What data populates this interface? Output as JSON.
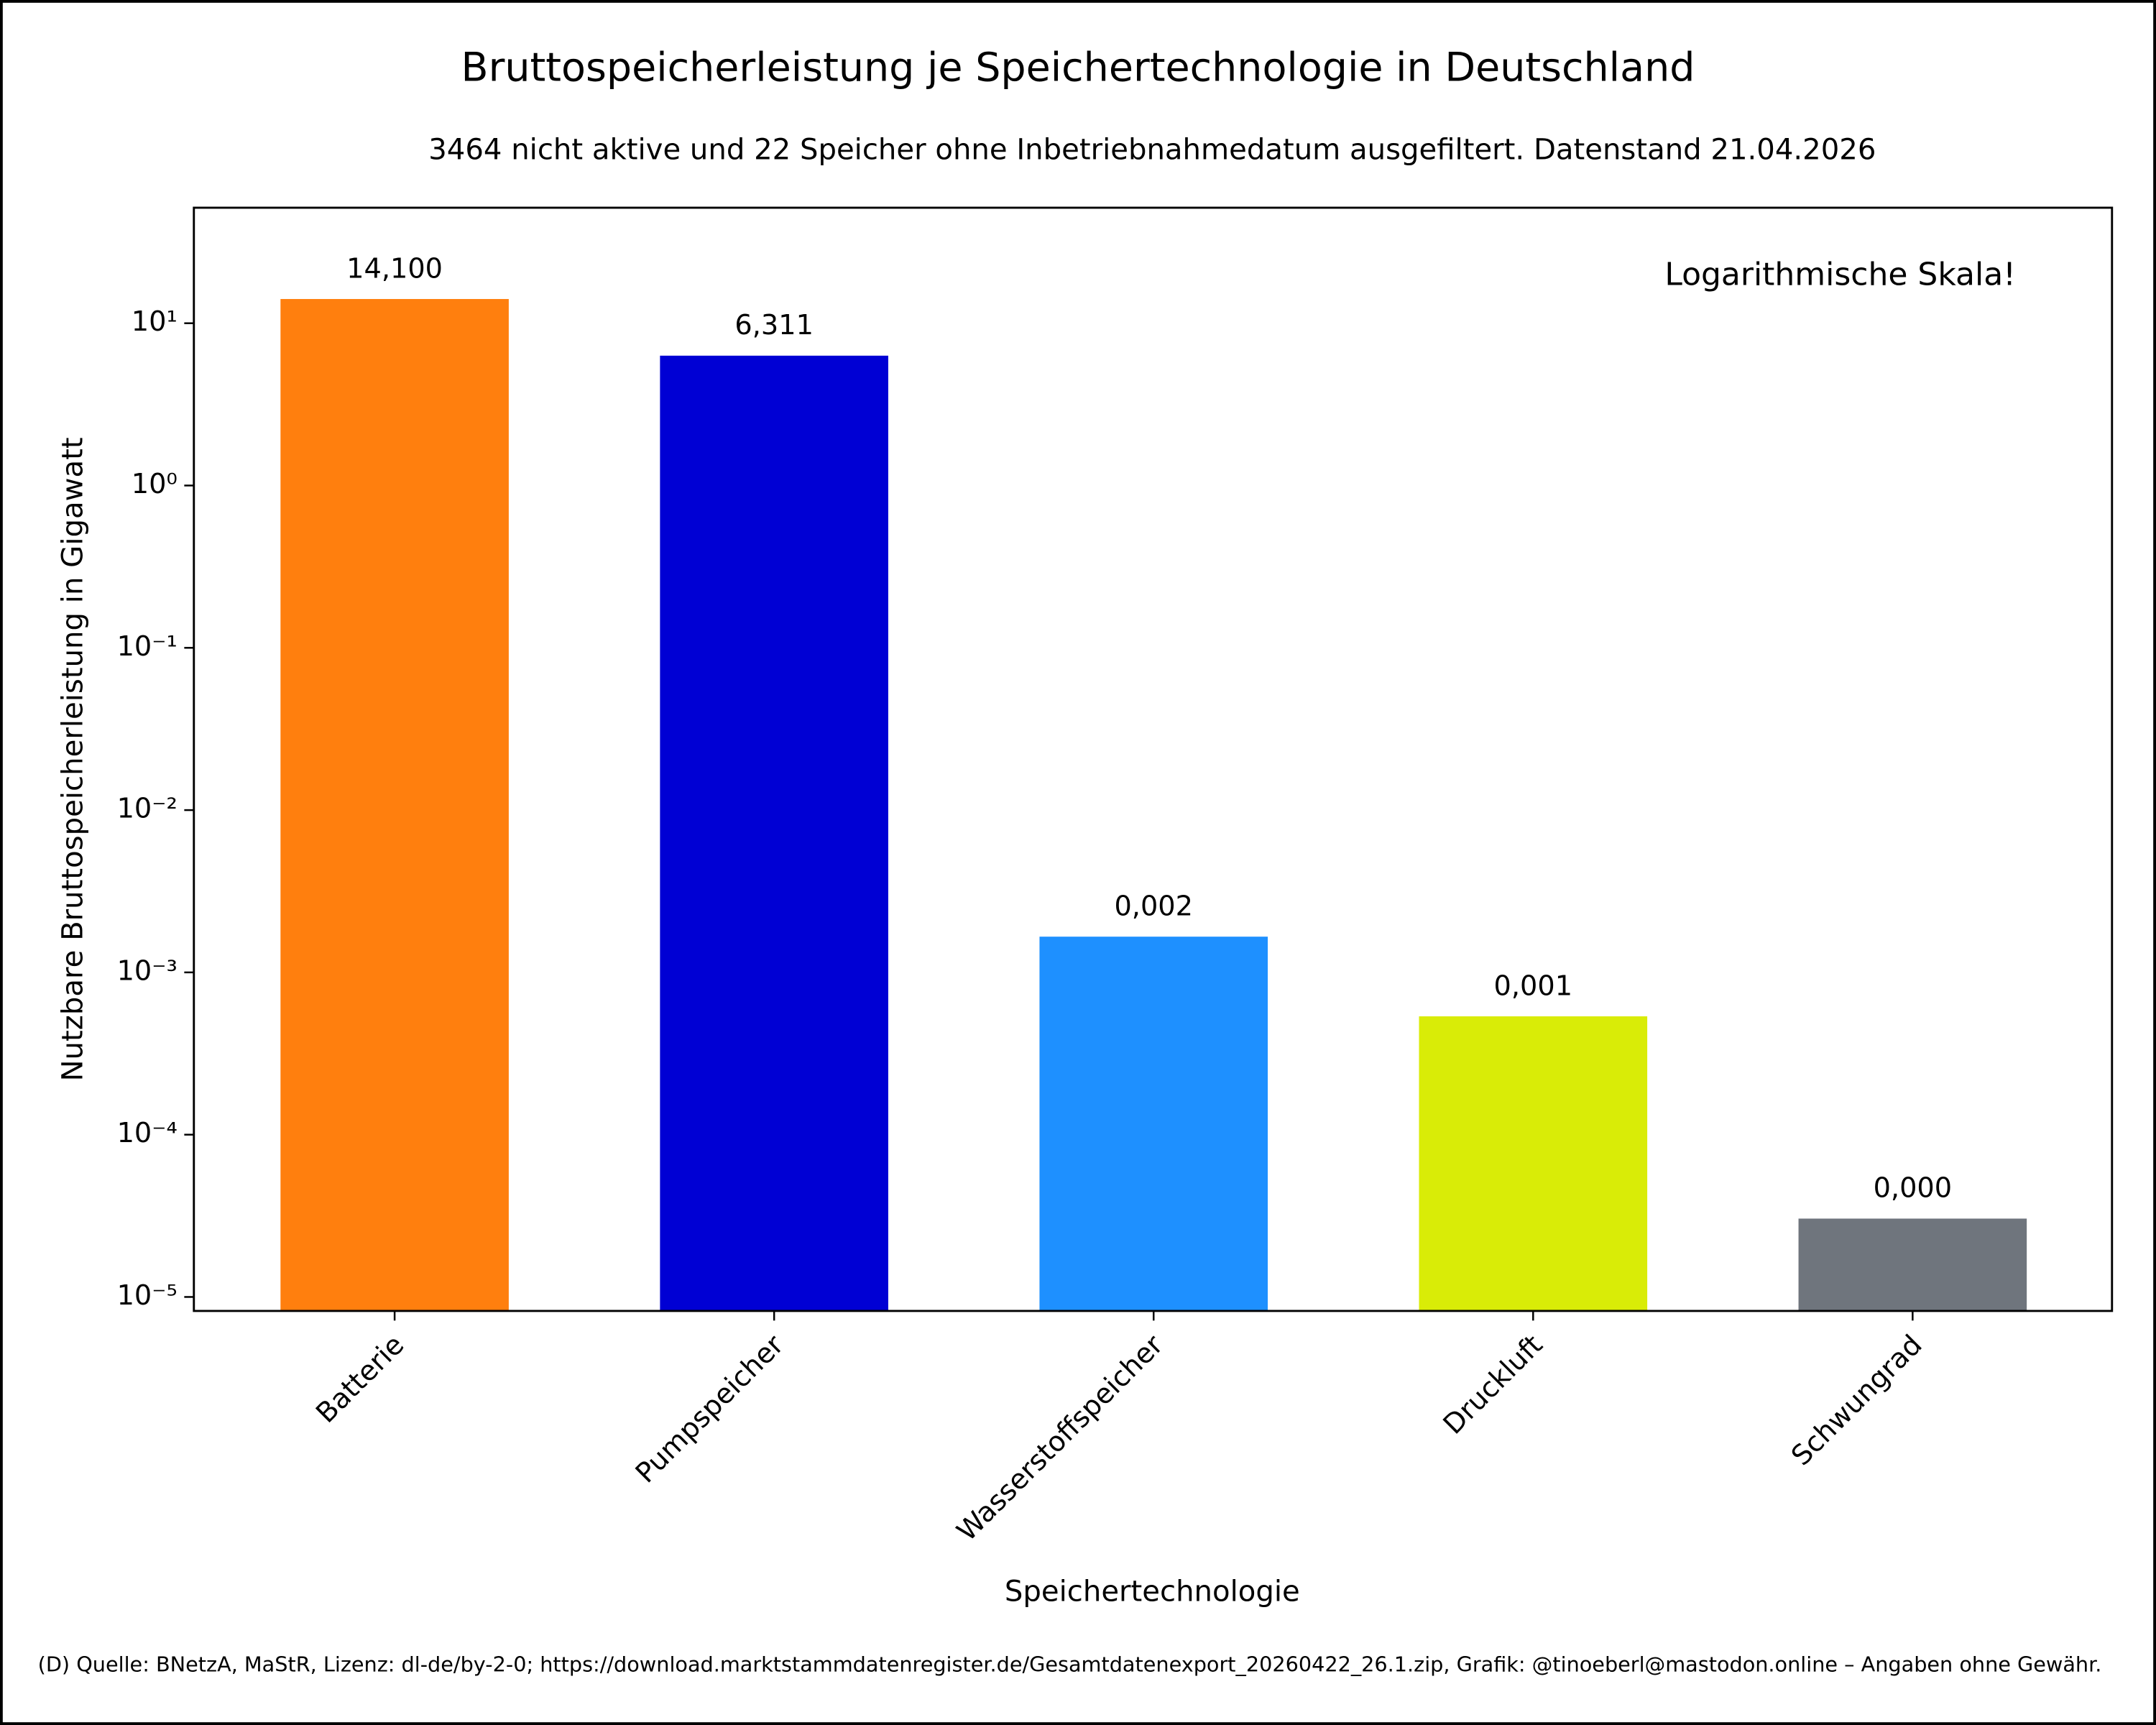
{
  "chart_data": {
    "type": "bar",
    "title": "Bruttospeicherleistung je Speichertechnologie in Deutschland",
    "subtitle": "3464 nicht aktive und 22 Speicher ohne Inbetriebnahmedatum ausgefiltert. Datenstand 21.04.2026",
    "annotation": "Logarithmische Skala!",
    "source": "(D) Quelle: BNetzA, MaStR, Lizenz: dl-de/by-2-0; https://download.marktstammdatenregister.de/Gesamtdatenexport_20260422_26.1.zip, Grafik: @tinoeberl@mastodon.online – Angaben ohne Gewähr.",
    "x_label": "Speichertechnologie",
    "y_label": "Nutzbare Bruttospeicherleistung in Gigawatt",
    "categories": [
      "Batterie",
      "Pumpspeicher",
      "Wasserstoffspeicher",
      "Druckluft",
      "Schwungrad"
    ],
    "values": [
      14.1,
      6.311,
      0.00166,
      0.000536,
      3.04e-05
    ],
    "value_labels": [
      "14,100",
      "6,311",
      "0,002",
      "0,001",
      "0,000"
    ],
    "colors": [
      "#ff7f0e",
      "#0000d4",
      "#1e90ff",
      "#d9ec07",
      "#6f757d"
    ],
    "y_scale": "log",
    "ylim": [
      8.2e-06,
      51.5
    ],
    "yticks": [
      {
        "value": 1e-05,
        "label": "10⁻⁵"
      },
      {
        "value": 0.0001,
        "label": "10⁻⁴"
      },
      {
        "value": 0.001,
        "label": "10⁻³"
      },
      {
        "value": 0.01,
        "label": "10⁻²"
      },
      {
        "value": 0.1,
        "label": "10⁻¹"
      },
      {
        "value": 1,
        "label": "10⁰"
      },
      {
        "value": 10,
        "label": "10¹"
      }
    ],
    "grid": false
  }
}
